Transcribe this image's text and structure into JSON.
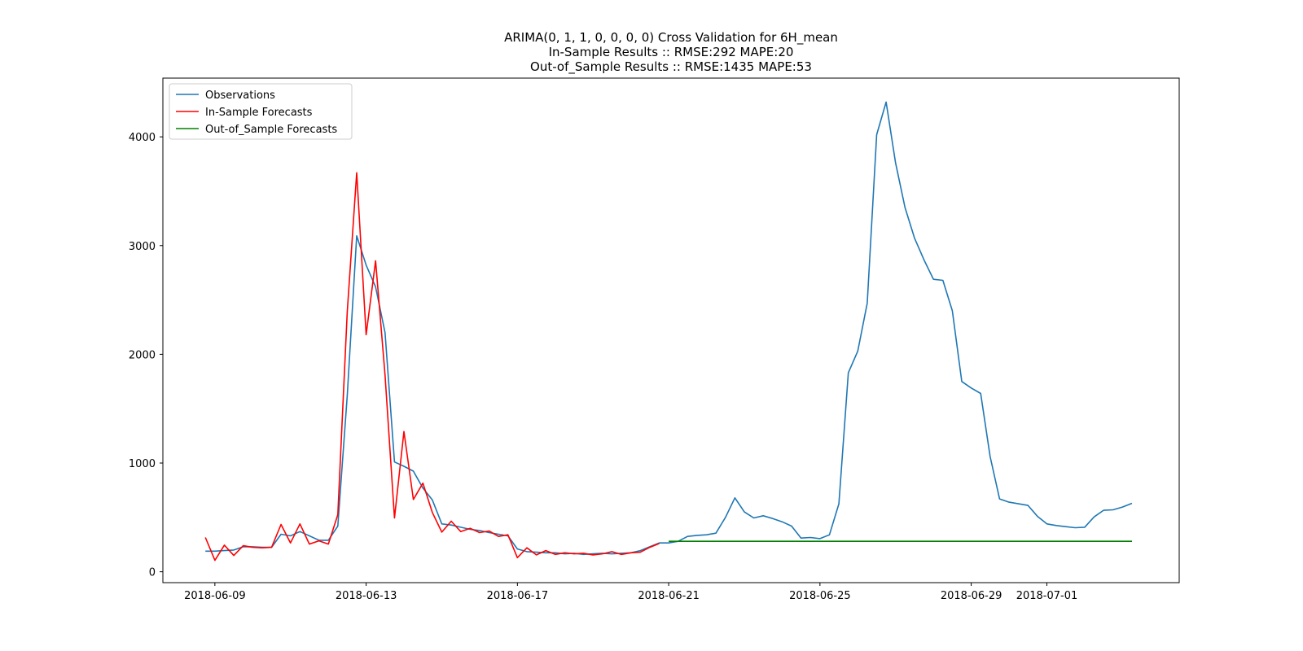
{
  "chart_data": {
    "type": "line",
    "title_lines": [
      "ARIMA(0, 1, 1, 0, 0, 0, 0) Cross Validation for 6H_mean",
      "In-Sample Results :: RMSE:292 MAPE:20",
      "Out-of_Sample Results :: RMSE:1435 MAPE:53"
    ],
    "xlabel": "",
    "ylabel": "",
    "x_start": "2018-06-08T18:00",
    "x_step_hours": 6,
    "xlim": [
      "2018-06-07T15:00",
      "2018-07-04T12:00"
    ],
    "ylim": [
      -100,
      4540
    ],
    "x_ticks": [
      "2018-06-09",
      "2018-06-13",
      "2018-06-17",
      "2018-06-21",
      "2018-06-25",
      "2018-06-29",
      "2018-07-01"
    ],
    "y_ticks": [
      0,
      1000,
      2000,
      3000,
      4000
    ],
    "grid": false,
    "legend_position": "top-left",
    "series": [
      {
        "name": "Observations",
        "color": "#1f77b4",
        "start_index": 0,
        "values": [
          190,
          190,
          195,
          200,
          230,
          230,
          225,
          225,
          345,
          330,
          370,
          330,
          290,
          290,
          420,
          1620,
          3090,
          2820,
          2620,
          2200,
          1010,
          970,
          925,
          770,
          660,
          440,
          430,
          410,
          390,
          380,
          360,
          345,
          330,
          210,
          185,
          180,
          175,
          175,
          165,
          170,
          160,
          165,
          170,
          165,
          170,
          175,
          195,
          230,
          265,
          265,
          280,
          325,
          335,
          340,
          355,
          500,
          680,
          550,
          495,
          515,
          490,
          460,
          420,
          310,
          315,
          305,
          340,
          625,
          1830,
          2030,
          2470,
          4020,
          4320,
          3760,
          3350,
          3070,
          2870,
          2690,
          2680,
          2400,
          1750,
          1690,
          1640,
          1060,
          670,
          640,
          625,
          610,
          510,
          440,
          425,
          415,
          405,
          410,
          505,
          565,
          570,
          595,
          630
        ]
      },
      {
        "name": "In-Sample Forecasts",
        "color": "#ff0000",
        "start_index": 0,
        "values": [
          315,
          105,
          245,
          150,
          240,
          225,
          220,
          225,
          435,
          265,
          440,
          255,
          285,
          255,
          525,
          2390,
          3670,
          2180,
          2860,
          1810,
          495,
          1290,
          665,
          815,
          545,
          365,
          465,
          370,
          400,
          360,
          375,
          325,
          340,
          130,
          220,
          155,
          195,
          160,
          175,
          165,
          170,
          155,
          165,
          185,
          160,
          175,
          180,
          225,
          260
        ]
      },
      {
        "name": "Out-of_Sample Forecasts",
        "color": "#008000",
        "start_index": 49,
        "values": [
          280,
          280,
          280,
          280,
          280,
          280,
          280,
          280,
          280,
          280,
          280,
          280,
          280,
          280,
          280,
          280,
          280,
          280,
          280,
          280,
          280,
          280,
          280,
          280,
          280,
          280,
          280,
          280,
          280,
          280,
          280,
          280,
          280,
          280,
          280,
          280,
          280,
          280,
          280,
          280,
          280,
          280,
          280,
          280,
          280,
          280,
          280,
          280,
          280,
          280
        ]
      }
    ]
  }
}
